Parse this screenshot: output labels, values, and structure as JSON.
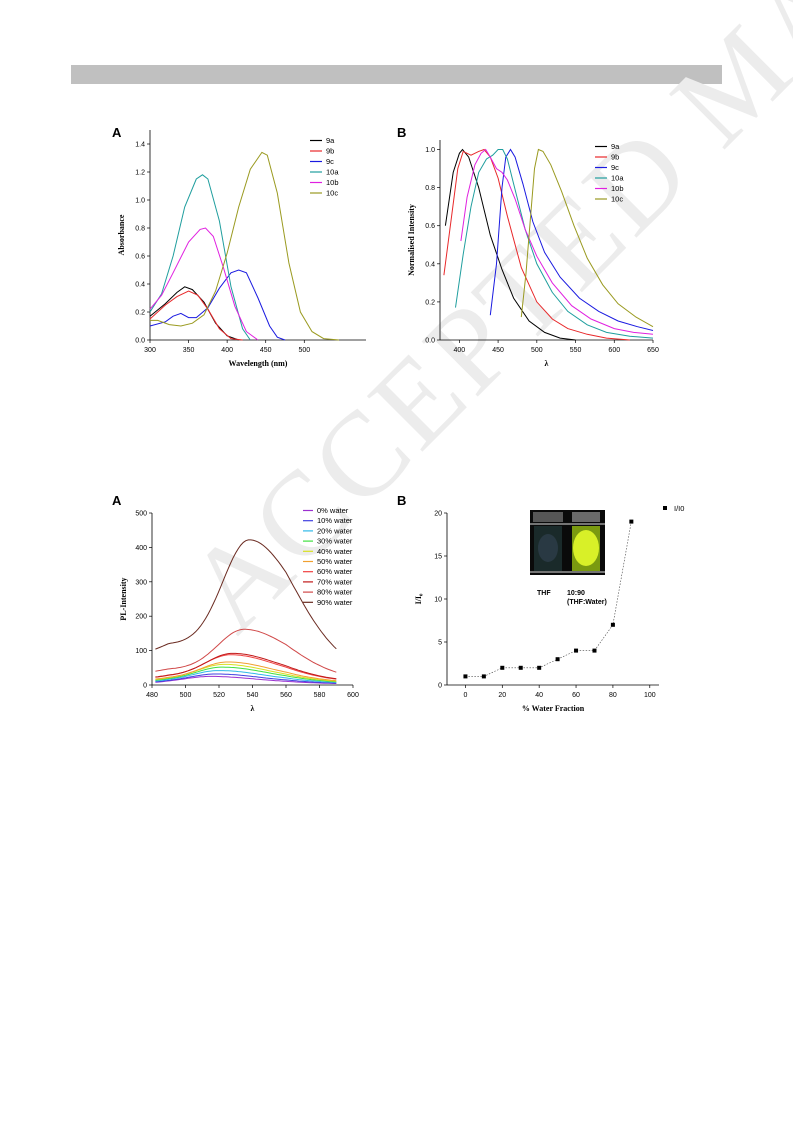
{
  "watermark": "ACCEPTED MANUSCRIPT",
  "chart_data": [
    {
      "type": "line",
      "panel": "A",
      "xlabel": "Wavelength (nm)",
      "ylabel": "Absorbance",
      "xlim": [
        300,
        580
      ],
      "ylim": [
        0,
        1.5
      ],
      "xticks": [
        300,
        350,
        400,
        450,
        500
      ],
      "yticks": [
        0.0,
        0.2,
        0.4,
        0.6,
        0.8,
        1.0,
        1.2,
        1.4
      ],
      "xtick_labels": [
        "300",
        "350",
        "400",
        "450",
        "500"
      ],
      "ytick_labels": [
        "0.0",
        "0.2",
        "0.4",
        "0.6",
        "0.8",
        "1.0",
        "1.2",
        "1.4"
      ],
      "legend_position": "top-right",
      "series": [
        {
          "name": "9a",
          "color": "#000000",
          "points": [
            [
              300,
              0.17
            ],
            [
              320,
              0.26
            ],
            [
              335,
              0.34
            ],
            [
              345,
              0.38
            ],
            [
              355,
              0.36
            ],
            [
              370,
              0.27
            ],
            [
              385,
              0.12
            ],
            [
              400,
              0.03
            ],
            [
              415,
              0.0
            ]
          ]
        },
        {
          "name": "9b",
          "color": "#e8282a",
          "points": [
            [
              300,
              0.15
            ],
            [
              320,
              0.25
            ],
            [
              335,
              0.31
            ],
            [
              350,
              0.35
            ],
            [
              362,
              0.32
            ],
            [
              375,
              0.22
            ],
            [
              390,
              0.08
            ],
            [
              405,
              0.01
            ],
            [
              420,
              0.0
            ]
          ]
        },
        {
          "name": "9c",
          "color": "#1a1ae0",
          "points": [
            [
              300,
              0.1
            ],
            [
              320,
              0.13
            ],
            [
              330,
              0.17
            ],
            [
              340,
              0.19
            ],
            [
              350,
              0.16
            ],
            [
              360,
              0.16
            ],
            [
              375,
              0.23
            ],
            [
              390,
              0.37
            ],
            [
              405,
              0.48
            ],
            [
              415,
              0.5
            ],
            [
              425,
              0.48
            ],
            [
              440,
              0.3
            ],
            [
              455,
              0.1
            ],
            [
              465,
              0.02
            ],
            [
              475,
              0.0
            ]
          ]
        },
        {
          "name": "10a",
          "color": "#1f9e9e",
          "points": [
            [
              300,
              0.2
            ],
            [
              315,
              0.33
            ],
            [
              330,
              0.6
            ],
            [
              345,
              0.95
            ],
            [
              360,
              1.15
            ],
            [
              368,
              1.18
            ],
            [
              375,
              1.15
            ],
            [
              390,
              0.85
            ],
            [
              405,
              0.38
            ],
            [
              420,
              0.08
            ],
            [
              430,
              0.0
            ]
          ]
        },
        {
          "name": "10b",
          "color": "#e020e0",
          "points": [
            [
              300,
              0.22
            ],
            [
              315,
              0.32
            ],
            [
              330,
              0.48
            ],
            [
              350,
              0.7
            ],
            [
              365,
              0.79
            ],
            [
              372,
              0.8
            ],
            [
              382,
              0.74
            ],
            [
              395,
              0.52
            ],
            [
              410,
              0.24
            ],
            [
              425,
              0.06
            ],
            [
              440,
              0.0
            ]
          ]
        },
        {
          "name": "10c",
          "color": "#9a9a20",
          "points": [
            [
              300,
              0.14
            ],
            [
              310,
              0.14
            ],
            [
              325,
              0.11
            ],
            [
              340,
              0.1
            ],
            [
              355,
              0.12
            ],
            [
              370,
              0.18
            ],
            [
              385,
              0.35
            ],
            [
              400,
              0.62
            ],
            [
              415,
              0.95
            ],
            [
              430,
              1.22
            ],
            [
              445,
              1.34
            ],
            [
              452,
              1.32
            ],
            [
              465,
              1.05
            ],
            [
              480,
              0.55
            ],
            [
              495,
              0.2
            ],
            [
              510,
              0.06
            ],
            [
              525,
              0.01
            ],
            [
              545,
              0.0
            ]
          ]
        }
      ]
    },
    {
      "type": "line",
      "panel": "B",
      "xlabel": "λ",
      "ylabel": "Normalised Intensity",
      "xlim": [
        375,
        650
      ],
      "ylim": [
        0,
        1.05
      ],
      "xticks": [
        400,
        450,
        500,
        550,
        600,
        650
      ],
      "yticks": [
        0.0,
        0.2,
        0.4,
        0.6,
        0.8,
        1.0
      ],
      "xtick_labels": [
        "400",
        "450",
        "500",
        "550",
        "600",
        "650"
      ],
      "ytick_labels": [
        "0.0",
        "0.2",
        "0.4",
        "0.6",
        "0.8",
        "1.0"
      ],
      "legend_position": "top-right",
      "series": [
        {
          "name": "9a",
          "color": "#000000",
          "points": [
            [
              382,
              0.6
            ],
            [
              392,
              0.88
            ],
            [
              400,
              0.98
            ],
            [
              404,
              1.0
            ],
            [
              412,
              0.96
            ],
            [
              425,
              0.8
            ],
            [
              440,
              0.55
            ],
            [
              455,
              0.37
            ],
            [
              470,
              0.22
            ],
            [
              490,
              0.1
            ],
            [
              510,
              0.04
            ],
            [
              530,
              0.01
            ],
            [
              550,
              0.0
            ]
          ]
        },
        {
          "name": "9b",
          "color": "#e8282a",
          "points": [
            [
              380,
              0.34
            ],
            [
              390,
              0.65
            ],
            [
              398,
              0.9
            ],
            [
              405,
              0.99
            ],
            [
              415,
              0.97
            ],
            [
              425,
              0.99
            ],
            [
              432,
              1.0
            ],
            [
              440,
              0.96
            ],
            [
              450,
              0.85
            ],
            [
              462,
              0.65
            ],
            [
              480,
              0.38
            ],
            [
              500,
              0.2
            ],
            [
              520,
              0.11
            ],
            [
              540,
              0.06
            ],
            [
              565,
              0.03
            ],
            [
              590,
              0.01
            ],
            [
              620,
              0.0
            ]
          ]
        },
        {
          "name": "9c",
          "color": "#1a1ae0",
          "points": [
            [
              440,
              0.13
            ],
            [
              448,
              0.4
            ],
            [
              455,
              0.8
            ],
            [
              460,
              0.96
            ],
            [
              466,
              1.0
            ],
            [
              472,
              0.96
            ],
            [
              482,
              0.82
            ],
            [
              495,
              0.62
            ],
            [
              510,
              0.46
            ],
            [
              530,
              0.33
            ],
            [
              555,
              0.22
            ],
            [
              580,
              0.15
            ],
            [
              605,
              0.1
            ],
            [
              630,
              0.07
            ],
            [
              650,
              0.05
            ]
          ]
        },
        {
          "name": "10a",
          "color": "#1f9e9e",
          "points": [
            [
              395,
              0.17
            ],
            [
              405,
              0.45
            ],
            [
              415,
              0.7
            ],
            [
              425,
              0.88
            ],
            [
              435,
              0.95
            ],
            [
              443,
              0.97
            ],
            [
              450,
              1.0
            ],
            [
              456,
              1.0
            ],
            [
              462,
              0.95
            ],
            [
              470,
              0.82
            ],
            [
              485,
              0.58
            ],
            [
              500,
              0.4
            ],
            [
              520,
              0.25
            ],
            [
              540,
              0.15
            ],
            [
              565,
              0.08
            ],
            [
              590,
              0.04
            ],
            [
              620,
              0.02
            ],
            [
              650,
              0.01
            ]
          ]
        },
        {
          "name": "10b",
          "color": "#e020e0",
          "points": [
            [
              402,
              0.52
            ],
            [
              410,
              0.75
            ],
            [
              420,
              0.92
            ],
            [
              428,
              0.98
            ],
            [
              434,
              1.0
            ],
            [
              440,
              0.96
            ],
            [
              448,
              0.9
            ],
            [
              455,
              0.88
            ],
            [
              462,
              0.84
            ],
            [
              472,
              0.74
            ],
            [
              485,
              0.58
            ],
            [
              500,
              0.44
            ],
            [
              520,
              0.3
            ],
            [
              545,
              0.18
            ],
            [
              570,
              0.11
            ],
            [
              600,
              0.06
            ],
            [
              625,
              0.04
            ],
            [
              650,
              0.03
            ]
          ]
        },
        {
          "name": "10c",
          "color": "#9a9a20",
          "points": [
            [
              480,
              0.12
            ],
            [
              486,
              0.35
            ],
            [
              492,
              0.65
            ],
            [
              497,
              0.9
            ],
            [
              502,
              1.0
            ],
            [
              508,
              0.99
            ],
            [
              518,
              0.92
            ],
            [
              532,
              0.78
            ],
            [
              548,
              0.6
            ],
            [
              565,
              0.43
            ],
            [
              585,
              0.29
            ],
            [
              605,
              0.19
            ],
            [
              628,
              0.12
            ],
            [
              650,
              0.07
            ]
          ]
        }
      ]
    },
    {
      "type": "line",
      "panel": "A",
      "xlabel": "λ",
      "ylabel": "PL-Intensity",
      "xlim": [
        480,
        600
      ],
      "ylim": [
        0,
        500
      ],
      "xticks": [
        480,
        500,
        520,
        540,
        560,
        580,
        600
      ],
      "yticks": [
        0,
        100,
        200,
        300,
        400,
        500
      ],
      "xtick_labels": [
        "480",
        "500",
        "520",
        "540",
        "560",
        "580",
        "600"
      ],
      "ytick_labels": [
        "0",
        "100",
        "200",
        "300",
        "400",
        "500"
      ],
      "legend_position": "top-right",
      "series": [
        {
          "name": "0% water",
          "color": "#9b30d0",
          "peak": 25,
          "peak_x": 515
        },
        {
          "name": "10% water",
          "color": "#4040e0",
          "peak": 32,
          "peak_x": 518
        },
        {
          "name": "20% water",
          "color": "#30b8e8",
          "peak": 42,
          "peak_x": 520
        },
        {
          "name": "30% water",
          "color": "#40e040",
          "peak": 52,
          "peak_x": 522
        },
        {
          "name": "40% water",
          "color": "#d8e020",
          "peak": 60,
          "peak_x": 523
        },
        {
          "name": "50% water",
          "color": "#f0a030",
          "peak": 67,
          "peak_x": 525
        },
        {
          "name": "60% water",
          "color": "#f04040",
          "peak": 88,
          "peak_x": 527
        },
        {
          "name": "70% water",
          "color": "#c01818",
          "peak": 92,
          "peak_x": 528
        },
        {
          "name": "80% water",
          "color": "#d04848",
          "peak": 162,
          "peak_x": 535
        },
        {
          "name": "90% water",
          "color": "#6a2a20",
          "peak": 422,
          "peak_x": 538
        }
      ]
    },
    {
      "type": "scatter",
      "panel": "B",
      "xlabel": "% Water Fraction",
      "ylabel": "I/I₀",
      "xlim": [
        -10,
        105
      ],
      "ylim": [
        0,
        20
      ],
      "xticks": [
        0,
        20,
        40,
        60,
        80,
        100
      ],
      "yticks": [
        0,
        5,
        10,
        15,
        20
      ],
      "xtick_labels": [
        "0",
        "20",
        "40",
        "60",
        "80",
        "100"
      ],
      "ytick_labels": [
        "0",
        "5",
        "10",
        "15",
        "20"
      ],
      "legend_position": "top-right",
      "series": [
        {
          "name": "I/I0",
          "color": "#000000",
          "points": [
            [
              0,
              1
            ],
            [
              10,
              1
            ],
            [
              20,
              2
            ],
            [
              30,
              2
            ],
            [
              40,
              2
            ],
            [
              50,
              3
            ],
            [
              60,
              4
            ],
            [
              70,
              4
            ],
            [
              80,
              7
            ],
            [
              90,
              19
            ]
          ]
        }
      ],
      "inset": {
        "label_left": "THF",
        "label_right": "10:90",
        "label_right_2": "(THF:Water)"
      }
    }
  ]
}
